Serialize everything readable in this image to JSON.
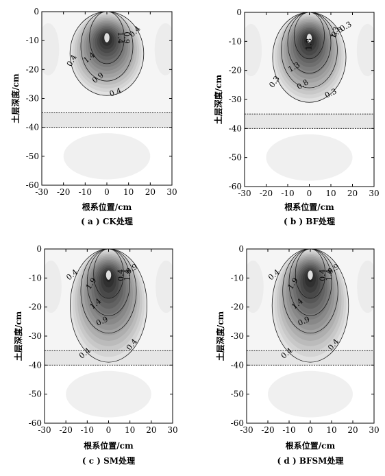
{
  "figure": {
    "panels": [
      {
        "caption": "( a ) CK处理",
        "ylabel": "土层深度/cm",
        "xlabel": "根系位置/cm",
        "contour_labels": [
          "1.4",
          "0.9",
          "0.4",
          "1.4",
          "0.9",
          "0.4",
          "0.4"
        ]
      },
      {
        "caption": "( b ) BF处理",
        "ylabel": "土层深度/cm",
        "xlabel": "根系位置/cm",
        "contour_labels": [
          "1.3",
          "0.8",
          "0.3",
          "1.8",
          "1.3",
          "0.8",
          "0.3",
          "0.3"
        ]
      },
      {
        "caption": "( c ) SM处理",
        "ylabel": "土层深度/cm",
        "xlabel": "根系位置/cm",
        "contour_labels": [
          "0.4",
          "1.9",
          "1.4",
          "0.9",
          "0.4",
          "1.4",
          "0.9",
          "0.4",
          "0.4"
        ]
      },
      {
        "caption": "( d ) BFSM处理",
        "ylabel": "土层深度/cm",
        "xlabel": "根系位置/cm",
        "contour_labels": [
          "0.4",
          "1.9",
          "1.4",
          "0.9",
          "0.4",
          "1.4",
          "0.9",
          "0.4",
          "0.4"
        ]
      }
    ]
  },
  "chart_data": [
    {
      "type": "heatmap",
      "panel": "( a ) CK处理",
      "xlabel": "根系位置/cm",
      "ylabel": "土层深度/cm",
      "xlim": [
        -30,
        30
      ],
      "ylim": [
        -60,
        0
      ],
      "xticks": [
        -30,
        -20,
        -10,
        0,
        10,
        20,
        30
      ],
      "yticks": [
        0,
        -10,
        -20,
        -30,
        -40,
        -50,
        -60
      ],
      "core": {
        "x": 0,
        "y": -9
      },
      "contour_levels": [
        0.4,
        0.9,
        1.4
      ],
      "contours": [
        {
          "level": 0.4,
          "top": 0,
          "bottom": -29,
          "halfwidth": 17
        },
        {
          "level": 0.9,
          "top": 0,
          "bottom": -24,
          "halfwidth": 12
        },
        {
          "level": 1.4,
          "top": 0,
          "bottom": -18,
          "halfwidth": 8
        }
      ],
      "boundary_lines": [
        -35,
        -40
      ]
    },
    {
      "type": "heatmap",
      "panel": "( b ) BF处理",
      "xlabel": "根系位置/cm",
      "ylabel": "土层深度/cm",
      "xlim": [
        -30,
        30
      ],
      "ylim": [
        -60,
        0
      ],
      "xticks": [
        -30,
        -20,
        -10,
        0,
        10,
        20,
        30
      ],
      "yticks": [
        0,
        -10,
        -20,
        -30,
        -40,
        -50,
        -60
      ],
      "core": {
        "x": 0,
        "y": -9
      },
      "contour_levels": [
        0.3,
        0.8,
        1.3,
        1.8
      ],
      "contours": [
        {
          "level": 0.3,
          "top": 0,
          "bottom": -31,
          "halfwidth": 17
        },
        {
          "level": 0.8,
          "top": 0,
          "bottom": -26,
          "halfwidth": 13
        },
        {
          "level": 1.3,
          "top": 0,
          "bottom": -21,
          "halfwidth": 10
        },
        {
          "level": 1.8,
          "top": 0,
          "bottom": -16,
          "halfwidth": 7
        }
      ],
      "boundary_lines": [
        -35,
        -40
      ]
    },
    {
      "type": "heatmap",
      "panel": "( c ) SM处理",
      "xlabel": "根系位置/cm",
      "ylabel": "土层深度/cm",
      "xlim": [
        -30,
        30
      ],
      "ylim": [
        -60,
        0
      ],
      "xticks": [
        -30,
        -20,
        -10,
        0,
        10,
        20,
        30
      ],
      "yticks": [
        0,
        -10,
        -20,
        -30,
        -40,
        -50,
        -60
      ],
      "core": {
        "x": 0,
        "y": -9
      },
      "contour_levels": [
        0.4,
        0.9,
        1.4,
        1.9
      ],
      "contours": [
        {
          "level": 0.4,
          "top": 0,
          "bottom": -39,
          "halfwidth": 18
        },
        {
          "level": 0.9,
          "top": 0,
          "bottom": -29,
          "halfwidth": 13
        },
        {
          "level": 1.4,
          "top": 0,
          "bottom": -23,
          "halfwidth": 10
        },
        {
          "level": 1.9,
          "top": 0,
          "bottom": -17,
          "halfwidth": 7
        }
      ],
      "boundary_lines": [
        -35,
        -40
      ]
    },
    {
      "type": "heatmap",
      "panel": "( d ) BFSM处理",
      "xlabel": "根系位置/cm",
      "ylabel": "土层深度/cm",
      "xlim": [
        -30,
        30
      ],
      "ylim": [
        -60,
        0
      ],
      "xticks": [
        -30,
        -20,
        -10,
        0,
        10,
        20,
        30
      ],
      "yticks": [
        0,
        -10,
        -20,
        -30,
        -40,
        -50,
        -60
      ],
      "core": {
        "x": 0,
        "y": -9
      },
      "contour_levels": [
        0.4,
        0.9,
        1.4,
        1.9
      ],
      "contours": [
        {
          "level": 0.4,
          "top": 0,
          "bottom": -39,
          "halfwidth": 18
        },
        {
          "level": 0.9,
          "top": 0,
          "bottom": -29,
          "halfwidth": 13
        },
        {
          "level": 1.4,
          "top": 0,
          "bottom": -23,
          "halfwidth": 10
        },
        {
          "level": 1.9,
          "top": 0,
          "bottom": -17,
          "halfwidth": 7
        }
      ],
      "boundary_lines": [
        -35,
        -40
      ]
    }
  ]
}
